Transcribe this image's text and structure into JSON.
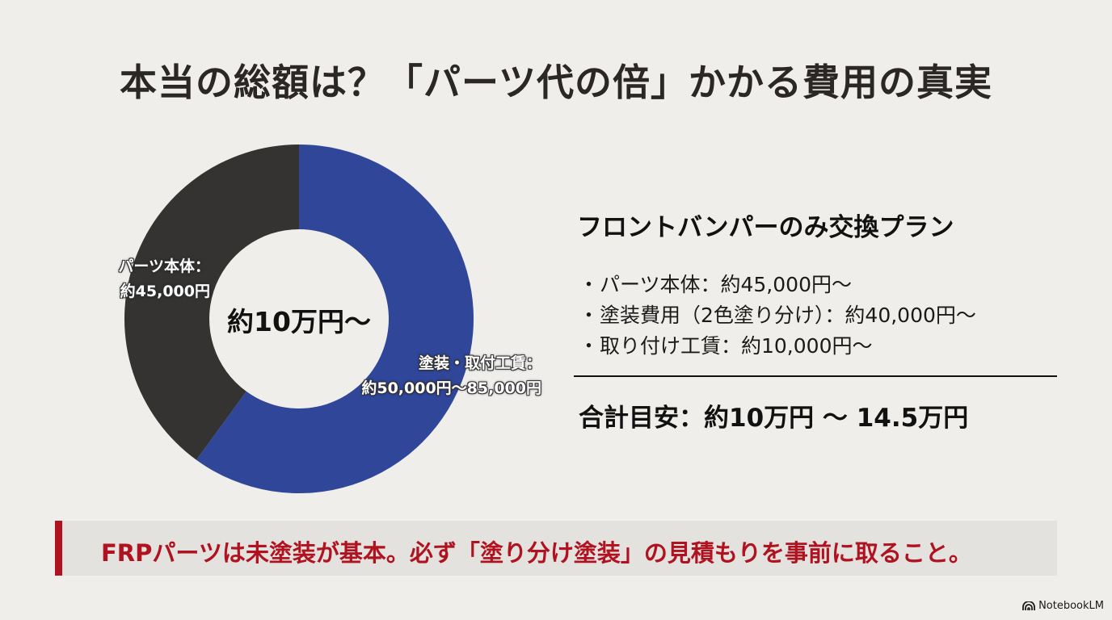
{
  "title": "本当の総額は？「パーツ代の倍」かかる費用の真実",
  "chart_data": {
    "type": "pie",
    "variant": "donut",
    "title": "",
    "center_label": "約10万円〜",
    "categories": [
      "塗装・取付工賃",
      "パーツ本体"
    ],
    "values": [
      60,
      40
    ],
    "value_labels": [
      "約50,000円〜85,000円",
      "約45,000円"
    ],
    "colors": [
      "#2f4699",
      "#343331"
    ],
    "start_angle_deg": 0,
    "direction": "clockwise",
    "legend": "none",
    "segment_labels": [
      {
        "line1": "塗装・取付工賃：",
        "line2": "約50,000円〜85,000円"
      },
      {
        "line1": "パーツ本体：",
        "line2": "約45,000円"
      }
    ]
  },
  "plan": {
    "title": "フロントバンパーのみ交換プラン",
    "bullet": "・",
    "items": [
      "パーツ本体：約45,000円〜",
      "塗装費用（2色塗り分け）：約40,000円〜",
      "取り付け工賃：約10,000円〜"
    ],
    "total": "合計目安：約10万円 〜 14.5万円"
  },
  "callout": {
    "text": "FRPパーツは未塗装が基本。必ず「塗り分け塗装」の見積もりを事前に取ること。",
    "accent_color": "#b0121f"
  },
  "brand": {
    "icon": "notebooklm-logo-icon",
    "label": "NotebookLM"
  }
}
